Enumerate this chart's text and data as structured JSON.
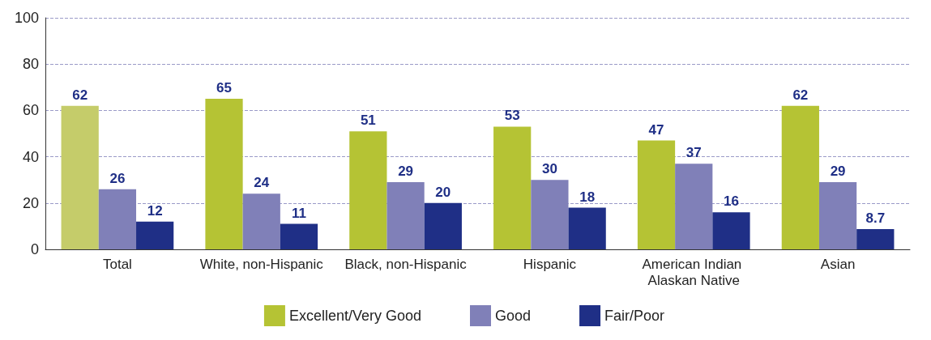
{
  "chart_data": {
    "type": "bar",
    "categories": [
      "Total",
      "White, non-Hispanic",
      "Black, non-Hispanic",
      "Hispanic",
      "American Indian Alaskan Native",
      "Asian"
    ],
    "series": [
      {
        "name": "Excellent/Very Good",
        "color": "#b5c334",
        "colors": [
          "#c5cc6a",
          "#b5c334",
          "#b5c334",
          "#b5c334",
          "#b5c334",
          "#b5c334"
        ],
        "values": [
          62,
          65,
          51,
          53,
          47,
          62
        ]
      },
      {
        "name": "Good",
        "color": "#8080b8",
        "values": [
          26,
          24,
          29,
          30,
          37,
          29
        ]
      },
      {
        "name": "Fair/Poor",
        "color": "#1f2f86",
        "values": [
          12,
          11,
          20,
          18,
          16,
          8.7
        ]
      }
    ],
    "ylim": [
      0,
      100
    ],
    "yticks": [
      0,
      20,
      40,
      60,
      80,
      100
    ],
    "grid": "y",
    "legend": "bottom",
    "data_labels": true
  }
}
